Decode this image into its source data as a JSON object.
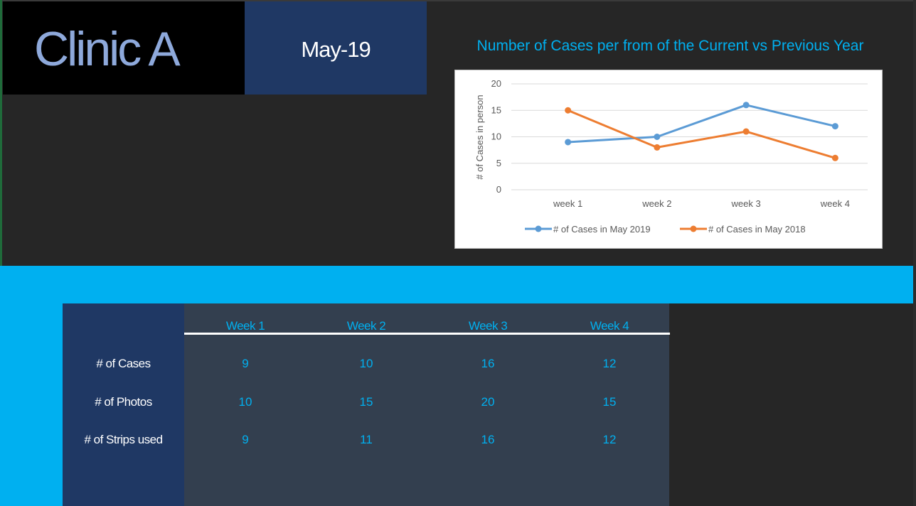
{
  "header": {
    "title": "Clinic A",
    "date": "May-19"
  },
  "chart": {
    "title": "Number of Cases per from of the Current vs Previous Year"
  },
  "chart_data": {
    "type": "line",
    "title": "Number of Cases per from of the Current vs Previous Year",
    "xlabel": "",
    "ylabel": "# of Cases in person",
    "categories": [
      "week 1",
      "week 2",
      "week 3",
      "week 4"
    ],
    "ylim": [
      0,
      20
    ],
    "yticks": [
      "0",
      "5",
      "10",
      "15",
      "20"
    ],
    "grid": true,
    "legend": "bottom",
    "series": [
      {
        "name": "# of Cases in May 2019",
        "values": [
          9,
          10,
          16,
          12
        ],
        "color": "#5b9bd5"
      },
      {
        "name": "# of Cases in May 2018",
        "values": [
          15,
          8,
          11,
          6
        ],
        "color": "#ed7d31"
      }
    ]
  },
  "table": {
    "columns": [
      "Week 1",
      "Week 2",
      "Week 3",
      "Week 4"
    ],
    "rows": [
      {
        "label": "# of Cases",
        "values": [
          "9",
          "10",
          "16",
          "12"
        ]
      },
      {
        "label": "# of Photos",
        "values": [
          "10",
          "15",
          "20",
          "15"
        ]
      },
      {
        "label": "# of Strips used",
        "values": [
          "9",
          "11",
          "16",
          "12"
        ]
      }
    ]
  },
  "colors": {
    "accent": "#00b0f0",
    "navy": "#1f3864",
    "slate": "#333f4f",
    "title": "#8ea9db"
  }
}
